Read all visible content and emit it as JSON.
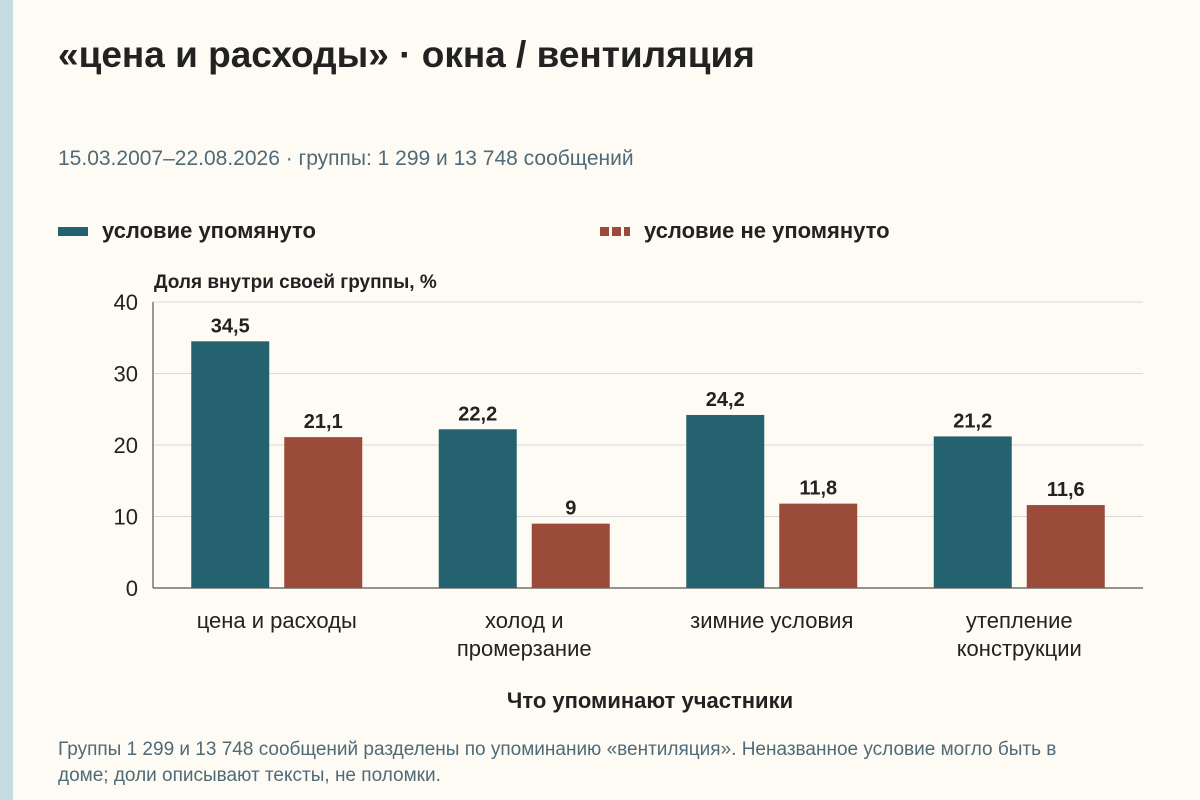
{
  "title": "«цена и расходы» · окна / вентиляция",
  "subtitle": "15.03.2007–22.08.2026 · группы: 1 299 и 13 748 сообщений",
  "legend": {
    "mentioned": "условие упомянуто",
    "not_mentioned": "условие не упомянуто"
  },
  "footnote": "Группы 1 299 и 13 748 сообщений разделены по упоминанию «вентиляция». Неназванное условие могло быть в доме; доли описывают тексты, не поломки.",
  "colors": {
    "mentioned": "#24626f",
    "not_mentioned": "#9a4b3a",
    "grid": "#d9d9d9",
    "axis": "#555555",
    "left_rule": "#c3dde0",
    "background": "#fdfbf3"
  },
  "chart_data": {
    "type": "bar",
    "title": "«цена и расходы» · окна / вентиляция",
    "ylabel": "Доля внутри своей группы, %",
    "xlabel": "Что упоминают участники",
    "ylim": [
      0,
      40
    ],
    "yticks": [
      0,
      10,
      20,
      30,
      40
    ],
    "grid": true,
    "legend_position": "top",
    "categories": [
      [
        "цена и расходы"
      ],
      [
        "холод и",
        "промерзание"
      ],
      [
        "зимние условия"
      ],
      [
        "утепление",
        "конструкции"
      ]
    ],
    "series": [
      {
        "name": "условие упомянуто",
        "values": [
          34.5,
          22.2,
          24.2,
          21.2
        ],
        "labels": [
          "34,5",
          "22,2",
          "24,2",
          "21,2"
        ]
      },
      {
        "name": "условие не упомянуто",
        "values": [
          21.1,
          9,
          11.8,
          11.6
        ],
        "labels": [
          "21,1",
          "9",
          "11,8",
          "11,6"
        ]
      }
    ]
  }
}
